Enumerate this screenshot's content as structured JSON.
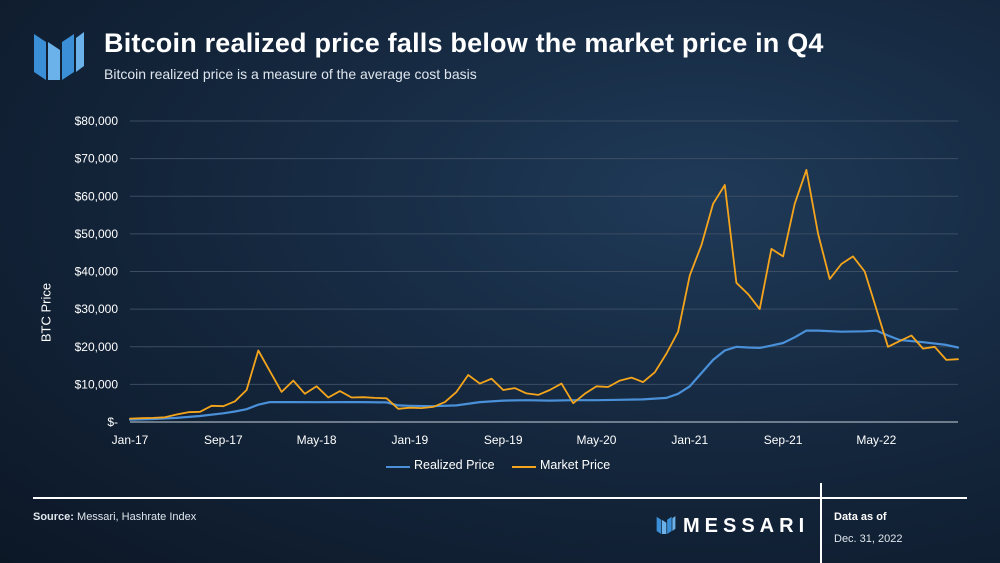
{
  "header": {
    "title": "Bitcoin realized price falls below the market price in Q4",
    "subtitle": "Bitcoin realized price is a measure of the average cost basis"
  },
  "footer": {
    "source_label": "Source:",
    "source_text": "Messari, Hashrate Index",
    "brand": "MESSARI",
    "asof_label": "Data as of",
    "asof_date": "Dec. 31, 2022"
  },
  "colors": {
    "realized": "#4a90d9",
    "market": "#f5a51c",
    "grid": "#3a4d63",
    "text": "#ffffff"
  },
  "chart_data": {
    "type": "line",
    "title": "Bitcoin realized price falls below the market price in Q4",
    "subtitle": "Bitcoin realized price is a measure of the average cost basis",
    "ylabel": "BTC Price",
    "xlabel": "",
    "ylim": [
      0,
      80000
    ],
    "yticks": [
      0,
      10000,
      20000,
      30000,
      40000,
      50000,
      60000,
      70000,
      80000
    ],
    "ytick_labels": [
      "$-",
      "$10,000",
      "$20,000",
      "$30,000",
      "$40,000",
      "$50,000",
      "$60,000",
      "$70,000",
      "$80,000"
    ],
    "xlim": [
      "2017-01",
      "2022-12"
    ],
    "xticks": [
      "2017-01",
      "2017-09",
      "2018-05",
      "2019-01",
      "2019-09",
      "2020-05",
      "2021-01",
      "2021-09",
      "2022-05"
    ],
    "xtick_labels": [
      "Jan-17",
      "Sep-17",
      "May-18",
      "Jan-19",
      "Sep-19",
      "May-20",
      "Jan-21",
      "Sep-21",
      "May-22"
    ],
    "grid": true,
    "legend_position": "bottom",
    "series": [
      {
        "name": "Realized Price",
        "color": "#4a90d9",
        "points": [
          [
            "2017-01",
            600
          ],
          [
            "2017-03",
            800
          ],
          [
            "2017-05",
            1100
          ],
          [
            "2017-07",
            1600
          ],
          [
            "2017-09",
            2300
          ],
          [
            "2017-10",
            2800
          ],
          [
            "2017-11",
            3400
          ],
          [
            "2017-12",
            4600
          ],
          [
            "2018-01",
            5300
          ],
          [
            "2018-03",
            5300
          ],
          [
            "2018-05",
            5250
          ],
          [
            "2018-07",
            5300
          ],
          [
            "2018-09",
            5300
          ],
          [
            "2018-11",
            5200
          ],
          [
            "2018-12",
            4400
          ],
          [
            "2019-01",
            4300
          ],
          [
            "2019-03",
            4200
          ],
          [
            "2019-05",
            4400
          ],
          [
            "2019-07",
            5300
          ],
          [
            "2019-09",
            5700
          ],
          [
            "2019-11",
            5800
          ],
          [
            "2020-01",
            5700
          ],
          [
            "2020-03",
            5800
          ],
          [
            "2020-05",
            5800
          ],
          [
            "2020-07",
            5900
          ],
          [
            "2020-09",
            6000
          ],
          [
            "2020-11",
            6400
          ],
          [
            "2020-12",
            7500
          ],
          [
            "2021-01",
            9500
          ],
          [
            "2021-02",
            13000
          ],
          [
            "2021-03",
            16500
          ],
          [
            "2021-04",
            19000
          ],
          [
            "2021-05",
            20000
          ],
          [
            "2021-06",
            19800
          ],
          [
            "2021-07",
            19700
          ],
          [
            "2021-08",
            20300
          ],
          [
            "2021-09",
            21000
          ],
          [
            "2021-10",
            22500
          ],
          [
            "2021-11",
            24300
          ],
          [
            "2021-12",
            24300
          ],
          [
            "2022-02",
            24000
          ],
          [
            "2022-04",
            24100
          ],
          [
            "2022-05",
            24300
          ],
          [
            "2022-06",
            23000
          ],
          [
            "2022-07",
            21800
          ],
          [
            "2022-09",
            21200
          ],
          [
            "2022-11",
            20500
          ],
          [
            "2022-12",
            19800
          ]
        ]
      },
      {
        "name": "Market Price",
        "color": "#f5a51c",
        "points": [
          [
            "2017-01",
            900
          ],
          [
            "2017-02",
            1000
          ],
          [
            "2017-03",
            1100
          ],
          [
            "2017-04",
            1250
          ],
          [
            "2017-05",
            2000
          ],
          [
            "2017-06",
            2600
          ],
          [
            "2017-07",
            2700
          ],
          [
            "2017-08",
            4300
          ],
          [
            "2017-09",
            4200
          ],
          [
            "2017-10",
            5500
          ],
          [
            "2017-11",
            8500
          ],
          [
            "2017-12",
            19000
          ],
          [
            "2018-01",
            13500
          ],
          [
            "2018-02",
            8000
          ],
          [
            "2018-03",
            11000
          ],
          [
            "2018-04",
            7500
          ],
          [
            "2018-05",
            9500
          ],
          [
            "2018-06",
            6500
          ],
          [
            "2018-07",
            8200
          ],
          [
            "2018-08",
            6500
          ],
          [
            "2018-09",
            6600
          ],
          [
            "2018-10",
            6400
          ],
          [
            "2018-11",
            6300
          ],
          [
            "2018-12",
            3500
          ],
          [
            "2019-01",
            3800
          ],
          [
            "2019-02",
            3700
          ],
          [
            "2019-03",
            4000
          ],
          [
            "2019-04",
            5300
          ],
          [
            "2019-05",
            8000
          ],
          [
            "2019-06",
            12500
          ],
          [
            "2019-07",
            10200
          ],
          [
            "2019-08",
            11500
          ],
          [
            "2019-09",
            8500
          ],
          [
            "2019-10",
            9000
          ],
          [
            "2019-11",
            7600
          ],
          [
            "2019-12",
            7200
          ],
          [
            "2020-01",
            8500
          ],
          [
            "2020-02",
            10200
          ],
          [
            "2020-03",
            5000
          ],
          [
            "2020-04",
            7500
          ],
          [
            "2020-05",
            9500
          ],
          [
            "2020-06",
            9300
          ],
          [
            "2020-07",
            11000
          ],
          [
            "2020-08",
            11800
          ],
          [
            "2020-09",
            10600
          ],
          [
            "2020-10",
            13200
          ],
          [
            "2020-11",
            18200
          ],
          [
            "2020-12",
            24000
          ],
          [
            "2021-01",
            39000
          ],
          [
            "2021-02",
            47000
          ],
          [
            "2021-03",
            58000
          ],
          [
            "2021-04",
            63000
          ],
          [
            "2021-05",
            37000
          ],
          [
            "2021-06",
            34000
          ],
          [
            "2021-07",
            30000
          ],
          [
            "2021-08",
            46000
          ],
          [
            "2021-09",
            44000
          ],
          [
            "2021-10",
            58000
          ],
          [
            "2021-11",
            67000
          ],
          [
            "2021-12",
            50000
          ],
          [
            "2022-01",
            38000
          ],
          [
            "2022-02",
            42000
          ],
          [
            "2022-03",
            44000
          ],
          [
            "2022-04",
            40000
          ],
          [
            "2022-05",
            30000
          ],
          [
            "2022-06",
            20000
          ],
          [
            "2022-07",
            21500
          ],
          [
            "2022-08",
            23000
          ],
          [
            "2022-09",
            19500
          ],
          [
            "2022-10",
            20000
          ],
          [
            "2022-11",
            16500
          ],
          [
            "2022-12",
            16700
          ]
        ]
      }
    ]
  }
}
